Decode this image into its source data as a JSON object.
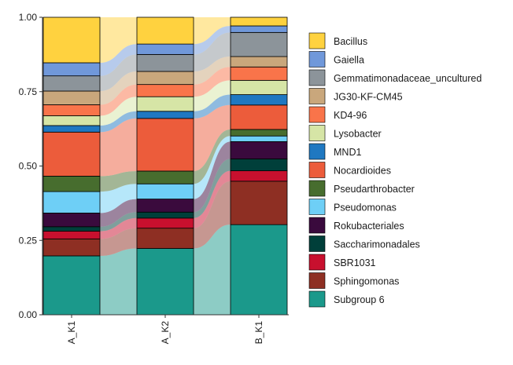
{
  "chart_data": {
    "type": "bar",
    "subtype": "stacked-alluvial",
    "title": "",
    "xlabel": "",
    "ylabel": "",
    "ylim": [
      0,
      1
    ],
    "yticks": [
      "0.00",
      "0.25",
      "0.50",
      "0.75",
      "1.00"
    ],
    "categories": [
      "A_K1",
      "A_K2",
      "B_K1"
    ],
    "legend_position": "right",
    "grid": false,
    "series": [
      {
        "name": "Subgroup 6",
        "color": "#1B998B",
        "values": [
          0.198,
          0.223,
          0.303
        ]
      },
      {
        "name": "Sphingomonas",
        "color": "#8E2F23",
        "values": [
          0.057,
          0.068,
          0.146
        ]
      },
      {
        "name": "SBR1031",
        "color": "#C8102E",
        "values": [
          0.026,
          0.034,
          0.035
        ]
      },
      {
        "name": "Saccharimonadales",
        "color": "#003F3A",
        "values": [
          0.015,
          0.02,
          0.04
        ]
      },
      {
        "name": "Rokubacteriales",
        "color": "#3A0A3D",
        "values": [
          0.046,
          0.044,
          0.058
        ]
      },
      {
        "name": "Pseudomonas",
        "color": "#6ECFF6",
        "values": [
          0.072,
          0.051,
          0.019
        ]
      },
      {
        "name": "Pseudarthrobacter",
        "color": "#476D2E",
        "values": [
          0.052,
          0.043,
          0.022
        ]
      },
      {
        "name": "Nocardioides",
        "color": "#EC5C3B",
        "values": [
          0.148,
          0.177,
          0.082
        ]
      },
      {
        "name": "MND1",
        "color": "#1F78C1",
        "values": [
          0.022,
          0.024,
          0.035
        ]
      },
      {
        "name": "Lysobacter",
        "color": "#D6E5A6",
        "values": [
          0.033,
          0.049,
          0.048
        ]
      },
      {
        "name": "KD4-96",
        "color": "#F9744A",
        "values": [
          0.037,
          0.041,
          0.045
        ]
      },
      {
        "name": "JG30-KF-CM45",
        "color": "#C9A77C",
        "values": [
          0.046,
          0.044,
          0.035
        ]
      },
      {
        "name": "Gemmatimonadaceae_uncultured",
        "color": "#8C949A",
        "values": [
          0.051,
          0.057,
          0.081
        ]
      },
      {
        "name": "Gaiella",
        "color": "#7098DA",
        "values": [
          0.044,
          0.035,
          0.022
        ]
      },
      {
        "name": "Bacillus",
        "color": "#FFD23F",
        "values": [
          0.153,
          0.09,
          0.029
        ]
      }
    ]
  }
}
